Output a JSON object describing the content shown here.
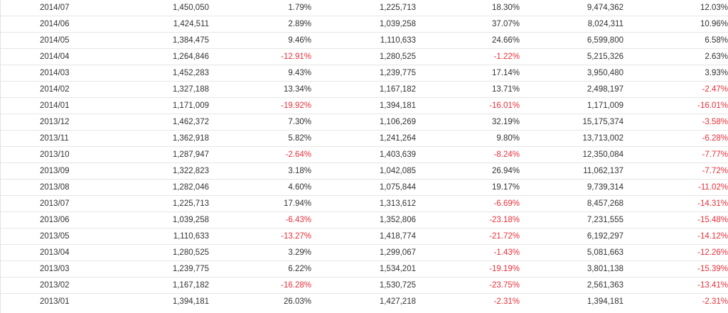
{
  "colors": {
    "negative": "#e8303a",
    "text": "#333333",
    "row_border": "#e6e6e6"
  },
  "table": {
    "rows": [
      [
        "2014/07",
        "1,450,050",
        "1.79%",
        "1,225,713",
        "18.30%",
        "9,474,362",
        "12.03%"
      ],
      [
        "2014/06",
        "1,424,511",
        "2.89%",
        "1,039,258",
        "37.07%",
        "8,024,311",
        "10.96%"
      ],
      [
        "2014/05",
        "1,384,475",
        "9.46%",
        "1,110,633",
        "24.66%",
        "6,599,800",
        "6.58%"
      ],
      [
        "2014/04",
        "1,264,846",
        "-12.91%",
        "1,280,525",
        "-1.22%",
        "5,215,326",
        "2.63%"
      ],
      [
        "2014/03",
        "1,452,283",
        "9.43%",
        "1,239,775",
        "17.14%",
        "3,950,480",
        "3.93%"
      ],
      [
        "2014/02",
        "1,327,188",
        "13.34%",
        "1,167,182",
        "13.71%",
        "2,498,197",
        "-2.47%"
      ],
      [
        "2014/01",
        "1,171,009",
        "-19.92%",
        "1,394,181",
        "-16.01%",
        "1,171,009",
        "-16.01%"
      ],
      [
        "2013/12",
        "1,462,372",
        "7.30%",
        "1,106,269",
        "32.19%",
        "15,175,374",
        "-3.58%"
      ],
      [
        "2013/11",
        "1,362,918",
        "5.82%",
        "1,241,264",
        "9.80%",
        "13,713,002",
        "-6.28%"
      ],
      [
        "2013/10",
        "1,287,947",
        "-2.64%",
        "1,403,639",
        "-8.24%",
        "12,350,084",
        "-7.77%"
      ],
      [
        "2013/09",
        "1,322,823",
        "3.18%",
        "1,042,085",
        "26.94%",
        "11,062,137",
        "-7.72%"
      ],
      [
        "2013/08",
        "1,282,046",
        "4.60%",
        "1,075,844",
        "19.17%",
        "9,739,314",
        "-11.02%"
      ],
      [
        "2013/07",
        "1,225,713",
        "17.94%",
        "1,313,612",
        "-6.69%",
        "8,457,268",
        "-14.31%"
      ],
      [
        "2013/06",
        "1,039,258",
        "-6.43%",
        "1,352,806",
        "-23.18%",
        "7,231,555",
        "-15.48%"
      ],
      [
        "2013/05",
        "1,110,633",
        "-13.27%",
        "1,418,774",
        "-21.72%",
        "6,192,297",
        "-14.12%"
      ],
      [
        "2013/04",
        "1,280,525",
        "3.29%",
        "1,299,067",
        "-1.43%",
        "5,081,663",
        "-12.26%"
      ],
      [
        "2013/03",
        "1,239,775",
        "6.22%",
        "1,534,201",
        "-19.19%",
        "3,801,138",
        "-15.39%"
      ],
      [
        "2013/02",
        "1,167,182",
        "-16.28%",
        "1,530,725",
        "-23.75%",
        "2,561,363",
        "-13.41%"
      ],
      [
        "2013/01",
        "1,394,181",
        "26.03%",
        "1,427,218",
        "-2.31%",
        "1,394,181",
        "-2.31%"
      ]
    ]
  }
}
